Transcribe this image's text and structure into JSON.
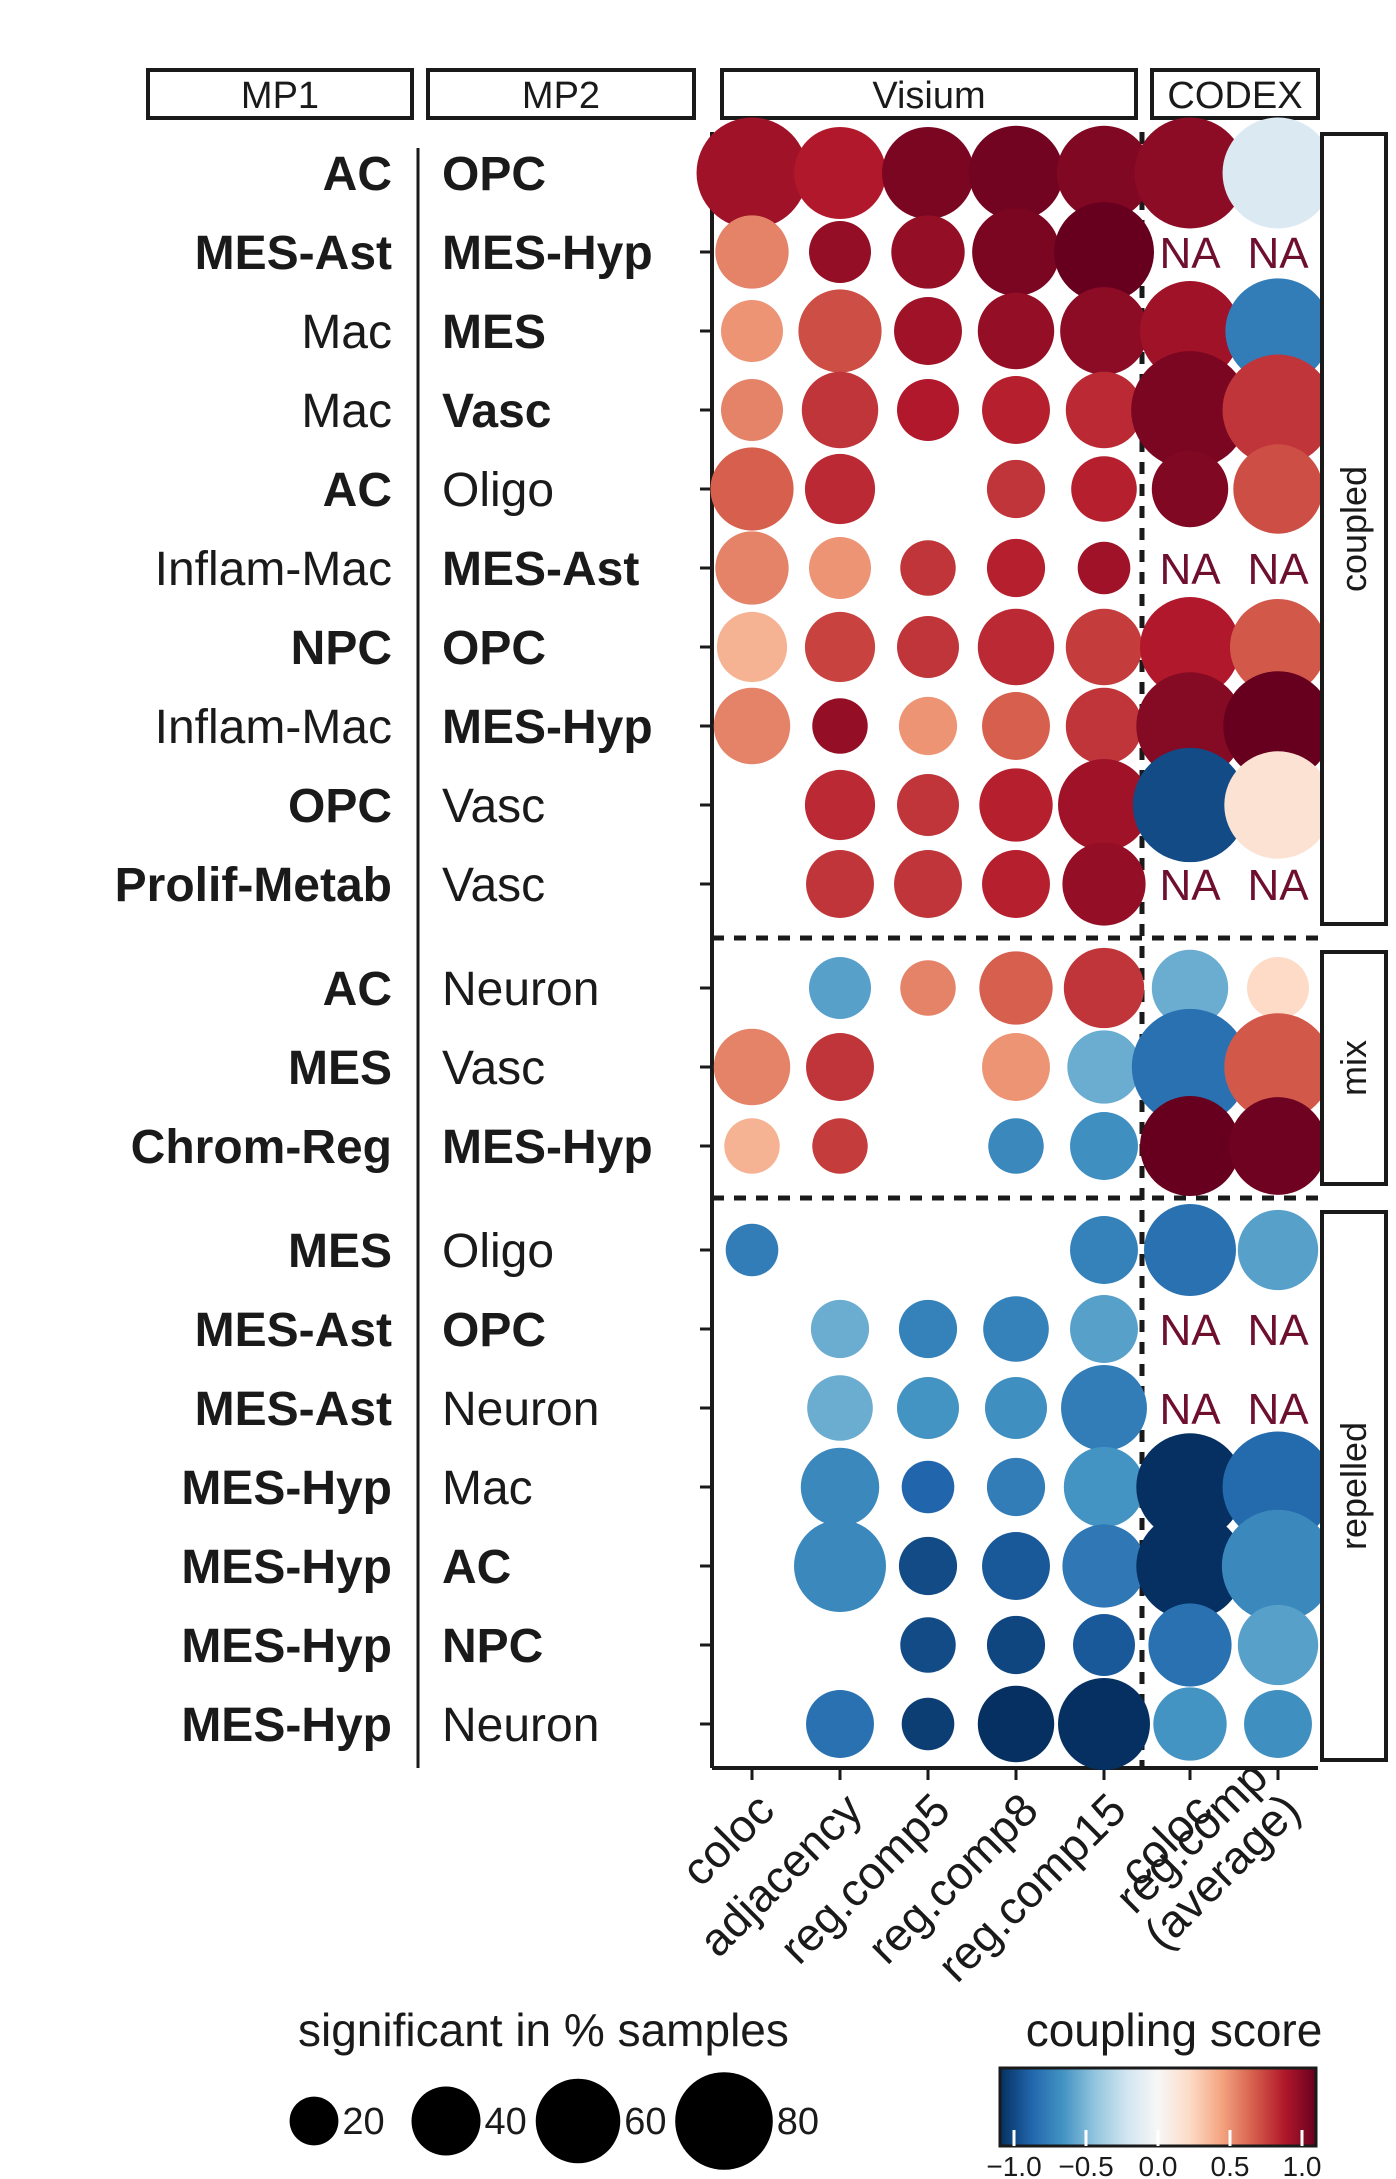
{
  "chart_data": {
    "type": "bubble-matrix",
    "column_groups": [
      {
        "label": "MP1"
      },
      {
        "label": "MP2"
      },
      {
        "label": "Visium"
      },
      {
        "label": "CODEX"
      }
    ],
    "columns": [
      "coloc",
      "adjacency",
      "reg.comp5",
      "reg.comp8",
      "reg.comp15",
      "coloc",
      "reg.comp\n(average)"
    ],
    "row_groups": [
      {
        "label": "coupled",
        "rows": [
          0,
          1,
          2,
          3,
          4,
          5,
          6,
          7,
          8,
          9
        ]
      },
      {
        "label": "mix",
        "rows": [
          10,
          11,
          12
        ]
      },
      {
        "label": "repelled",
        "rows": [
          13,
          14,
          15,
          16,
          17,
          18,
          19
        ]
      }
    ],
    "na_label": "NA",
    "rows": [
      {
        "mp1": "AC",
        "mp1_bold": true,
        "mp2": "OPC",
        "mp2_bold": true,
        "cells": [
          {
            "score": 0.85,
            "pct": 80
          },
          {
            "score": 0.8,
            "pct": 55
          },
          {
            "score": 0.95,
            "pct": 55
          },
          {
            "score": 0.97,
            "pct": 58
          },
          {
            "score": 0.93,
            "pct": 58
          },
          {
            "score": 0.9,
            "pct": 80
          },
          {
            "score": -0.15,
            "pct": 80
          }
        ]
      },
      {
        "mp1": "MES-Ast",
        "mp1_bold": true,
        "mp2": "MES-Hyp",
        "mp2_bold": true,
        "cells": [
          {
            "score": 0.5,
            "pct": 35
          },
          {
            "score": 0.88,
            "pct": 25
          },
          {
            "score": 0.88,
            "pct": 35
          },
          {
            "score": 0.95,
            "pct": 50
          },
          {
            "score": 1.0,
            "pct": 65
          },
          {
            "na": true
          },
          {
            "na": true
          }
        ]
      },
      {
        "mp1": "Mac",
        "mp1_bold": false,
        "mp2": "MES",
        "mp2_bold": true,
        "cells": [
          {
            "score": 0.45,
            "pct": 25
          },
          {
            "score": 0.65,
            "pct": 45
          },
          {
            "score": 0.85,
            "pct": 30
          },
          {
            "score": 0.88,
            "pct": 38
          },
          {
            "score": 0.9,
            "pct": 50
          },
          {
            "score": 0.85,
            "pct": 65
          },
          {
            "score": -0.7,
            "pct": 72
          }
        ]
      },
      {
        "mp1": "Mac",
        "mp1_bold": false,
        "mp2": "Vasc",
        "mp2_bold": true,
        "cells": [
          {
            "score": 0.5,
            "pct": 25
          },
          {
            "score": 0.72,
            "pct": 38
          },
          {
            "score": 0.8,
            "pct": 25
          },
          {
            "score": 0.78,
            "pct": 30
          },
          {
            "score": 0.75,
            "pct": 38
          },
          {
            "score": 0.95,
            "pct": 90
          },
          {
            "score": 0.72,
            "pct": 80
          }
        ]
      },
      {
        "mp1": "AC",
        "mp1_bold": true,
        "mp2": "Oligo",
        "mp2_bold": false,
        "cells": [
          {
            "score": 0.6,
            "pct": 45
          },
          {
            "score": 0.75,
            "pct": 32
          },
          null,
          {
            "score": 0.72,
            "pct": 22
          },
          {
            "score": 0.78,
            "pct": 28
          },
          {
            "score": 0.93,
            "pct": 38
          },
          {
            "score": 0.65,
            "pct": 52
          }
        ]
      },
      {
        "mp1": "Inflam-Mac",
        "mp1_bold": false,
        "mp2": "MES-Ast",
        "mp2_bold": true,
        "cells": [
          {
            "score": 0.5,
            "pct": 35
          },
          {
            "score": 0.45,
            "pct": 25
          },
          {
            "score": 0.72,
            "pct": 20
          },
          {
            "score": 0.78,
            "pct": 22
          },
          {
            "score": 0.85,
            "pct": 18
          },
          {
            "na": true
          },
          {
            "na": true
          }
        ]
      },
      {
        "mp1": "NPC",
        "mp1_bold": true,
        "mp2": "OPC",
        "mp2_bold": true,
        "cells": [
          {
            "score": 0.35,
            "pct": 32
          },
          {
            "score": 0.68,
            "pct": 32
          },
          {
            "score": 0.72,
            "pct": 25
          },
          {
            "score": 0.75,
            "pct": 38
          },
          {
            "score": 0.7,
            "pct": 38
          },
          {
            "score": 0.8,
            "pct": 65
          },
          {
            "score": 0.62,
            "pct": 60
          }
        ]
      },
      {
        "mp1": "Inflam-Mac",
        "mp1_bold": false,
        "mp2": "MES-Hyp",
        "mp2_bold": true,
        "cells": [
          {
            "score": 0.5,
            "pct": 38
          },
          {
            "score": 0.88,
            "pct": 20
          },
          {
            "score": 0.45,
            "pct": 22
          },
          {
            "score": 0.6,
            "pct": 30
          },
          {
            "score": 0.72,
            "pct": 38
          },
          {
            "score": 0.92,
            "pct": 75
          },
          {
            "score": 1.0,
            "pct": 78
          }
        ]
      },
      {
        "mp1": "OPC",
        "mp1_bold": true,
        "mp2": "Vasc",
        "mp2_bold": false,
        "cells": [
          null,
          {
            "score": 0.75,
            "pct": 32
          },
          {
            "score": 0.72,
            "pct": 25
          },
          {
            "score": 0.78,
            "pct": 35
          },
          {
            "score": 0.85,
            "pct": 55
          },
          {
            "score": -0.9,
            "pct": 85
          },
          {
            "score": 0.15,
            "pct": 75
          }
        ]
      },
      {
        "mp1": "Prolif-Metab",
        "mp1_bold": true,
        "mp2": "Vasc",
        "mp2_bold": false,
        "cells": [
          null,
          {
            "score": 0.72,
            "pct": 30
          },
          {
            "score": 0.72,
            "pct": 30
          },
          {
            "score": 0.78,
            "pct": 30
          },
          {
            "score": 0.88,
            "pct": 45
          },
          {
            "na": true
          },
          {
            "na": true
          }
        ]
      },
      {
        "mp1": "AC",
        "mp1_bold": true,
        "mp2": "Neuron",
        "mp2_bold": false,
        "cells": [
          null,
          {
            "score": -0.55,
            "pct": 25
          },
          {
            "score": 0.5,
            "pct": 20
          },
          {
            "score": 0.6,
            "pct": 35
          },
          {
            "score": 0.72,
            "pct": 42
          },
          {
            "score": -0.5,
            "pct": 38
          },
          {
            "score": 0.2,
            "pct": 25
          }
        ]
      },
      {
        "mp1": "MES",
        "mp1_bold": true,
        "mp2": "Vasc",
        "mp2_bold": false,
        "cells": [
          {
            "score": 0.5,
            "pct": 38
          },
          {
            "score": 0.72,
            "pct": 30
          },
          null,
          {
            "score": 0.45,
            "pct": 30
          },
          {
            "score": -0.5,
            "pct": 35
          },
          {
            "score": -0.75,
            "pct": 88
          },
          {
            "score": 0.62,
            "pct": 75
          }
        ]
      },
      {
        "mp1": "Chrom-Reg",
        "mp1_bold": true,
        "mp2": "MES-Hyp",
        "mp2_bold": true,
        "cells": [
          {
            "score": 0.35,
            "pct": 20
          },
          {
            "score": 0.7,
            "pct": 20
          },
          null,
          {
            "score": -0.65,
            "pct": 20
          },
          {
            "score": -0.62,
            "pct": 30
          },
          {
            "score": 1.0,
            "pct": 65
          },
          {
            "score": 0.98,
            "pct": 62
          }
        ]
      },
      {
        "mp1": "MES",
        "mp1_bold": true,
        "mp2": "Oligo",
        "mp2_bold": false,
        "cells": [
          {
            "score": -0.7,
            "pct": 18
          },
          null,
          null,
          null,
          {
            "score": -0.68,
            "pct": 30
          },
          {
            "score": -0.75,
            "pct": 55
          },
          {
            "score": -0.55,
            "pct": 42
          }
        ]
      },
      {
        "mp1": "MES-Ast",
        "mp1_bold": true,
        "mp2": "OPC",
        "mp2_bold": true,
        "cells": [
          null,
          {
            "score": -0.5,
            "pct": 22
          },
          {
            "score": -0.68,
            "pct": 22
          },
          {
            "score": -0.68,
            "pct": 28
          },
          {
            "score": -0.55,
            "pct": 30
          },
          {
            "na": true
          },
          {
            "na": true
          }
        ]
      },
      {
        "mp1": "MES-Ast",
        "mp1_bold": true,
        "mp2": "Neuron",
        "mp2_bold": false,
        "cells": [
          null,
          {
            "score": -0.5,
            "pct": 28
          },
          {
            "score": -0.6,
            "pct": 25
          },
          {
            "score": -0.62,
            "pct": 25
          },
          {
            "score": -0.7,
            "pct": 48
          },
          {
            "na": true
          },
          {
            "na": true
          }
        ]
      },
      {
        "mp1": "MES-Hyp",
        "mp1_bold": true,
        "mp2": "Mac",
        "mp2_bold": false,
        "cells": [
          null,
          {
            "score": -0.65,
            "pct": 40
          },
          {
            "score": -0.8,
            "pct": 18
          },
          {
            "score": -0.7,
            "pct": 22
          },
          {
            "score": -0.6,
            "pct": 42
          },
          {
            "score": -1.0,
            "pct": 75
          },
          {
            "score": -0.78,
            "pct": 80
          }
        ]
      },
      {
        "mp1": "MES-Hyp",
        "mp1_bold": true,
        "mp2": "AC",
        "mp2_bold": true,
        "cells": [
          null,
          {
            "score": -0.65,
            "pct": 55
          },
          {
            "score": -0.9,
            "pct": 22
          },
          {
            "score": -0.85,
            "pct": 30
          },
          {
            "score": -0.72,
            "pct": 45
          },
          {
            "score": -1.0,
            "pct": 75
          },
          {
            "score": -0.65,
            "pct": 82
          }
        ]
      },
      {
        "mp1": "MES-Hyp",
        "mp1_bold": true,
        "mp2": "NPC",
        "mp2_bold": true,
        "cells": [
          null,
          null,
          {
            "score": -0.9,
            "pct": 20
          },
          {
            "score": -0.92,
            "pct": 22
          },
          {
            "score": -0.85,
            "pct": 25
          },
          {
            "score": -0.75,
            "pct": 45
          },
          {
            "score": -0.55,
            "pct": 42
          }
        ]
      },
      {
        "mp1": "MES-Hyp",
        "mp1_bold": true,
        "mp2": "Neuron",
        "mp2_bold": false,
        "cells": [
          null,
          {
            "score": -0.75,
            "pct": 30
          },
          {
            "score": -0.95,
            "pct": 18
          },
          {
            "score": -1.0,
            "pct": 38
          },
          {
            "score": -1.0,
            "pct": 55
          },
          {
            "score": -0.6,
            "pct": 35
          },
          {
            "score": -0.62,
            "pct": 30
          }
        ]
      }
    ],
    "size_legend": {
      "title": "significant in % samples",
      "values": [
        20,
        40,
        60,
        80
      ],
      "labels": [
        "20",
        "40",
        "60",
        "80"
      ]
    },
    "color_legend": {
      "title": "coupling score",
      "min": -1.0,
      "max": 1.0,
      "ticks": [
        "−1.0",
        "−0.5",
        "0.0",
        "0.5",
        "1.0"
      ],
      "colors": [
        "#053061",
        "#2166ac",
        "#4393c3",
        "#92c5de",
        "#d1e5f0",
        "#f7f7f7",
        "#fddbc7",
        "#f4a582",
        "#d6604d",
        "#b2182b",
        "#67001f"
      ]
    }
  }
}
